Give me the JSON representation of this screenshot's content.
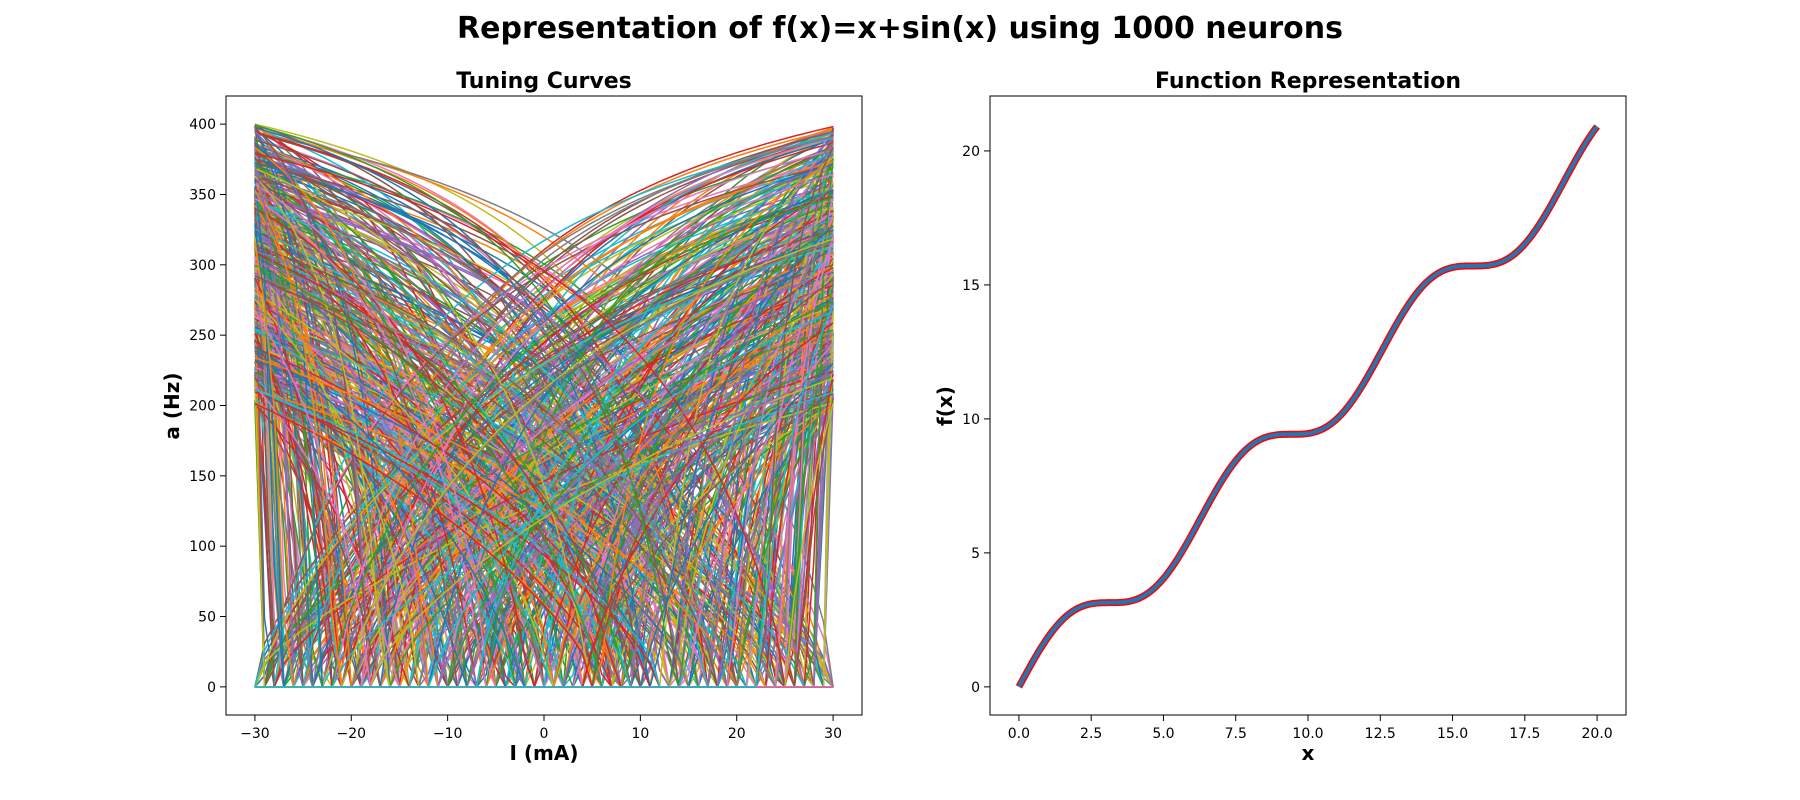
{
  "figure": {
    "title": "Representation of f(x)=x+sin(x) using 1000 neurons"
  },
  "chart_data": [
    {
      "type": "line",
      "title": "Tuning Curves",
      "xlabel": "I (mA)",
      "ylabel": "a (Hz)",
      "xlim": [
        -33,
        33
      ],
      "ylim": [
        -20,
        420
      ],
      "xticks": [
        -30,
        -20,
        -10,
        0,
        10,
        20,
        30
      ],
      "xtick_labels": [
        "−30",
        "−20",
        "−10",
        "0",
        "10",
        "20",
        "30"
      ],
      "yticks": [
        0,
        50,
        100,
        150,
        200,
        250,
        300,
        350,
        400
      ],
      "ytick_labels": [
        "0",
        "50",
        "100",
        "150",
        "200",
        "250",
        "300",
        "350",
        "400"
      ],
      "grid": false,
      "legend": "none",
      "series_count": 1000,
      "x_range": [
        -30,
        30
      ],
      "max_rate_range": [
        200,
        400
      ],
      "intercept_range": [
        -30,
        30
      ],
      "colors": [
        "#1f77b4",
        "#ff7f0e",
        "#2ca02c",
        "#d62728",
        "#9467bd",
        "#8c564b",
        "#e377c2",
        "#7f7f7f",
        "#bcbd22",
        "#17becf"
      ]
    },
    {
      "type": "line",
      "title": "Function Representation",
      "xlabel": "x",
      "ylabel": "f(x)",
      "xlim": [
        -1,
        21
      ],
      "ylim": [
        -1.05,
        22.05
      ],
      "xticks": [
        0,
        2.5,
        5,
        7.5,
        10,
        12.5,
        15,
        17.5,
        20
      ],
      "xtick_labels": [
        "0.0",
        "2.5",
        "5.0",
        "7.5",
        "10.0",
        "12.5",
        "15.0",
        "17.5",
        "20.0"
      ],
      "yticks": [
        0,
        5,
        10,
        15,
        20
      ],
      "ytick_labels": [
        "0",
        "5",
        "10",
        "15",
        "20"
      ],
      "grid": false,
      "legend": "none",
      "x_range": [
        0,
        20
      ],
      "series": [
        {
          "function": "x+sin(x)",
          "color": "#ff0000"
        },
        {
          "function": "x+sin(x)",
          "color": "#1f77b4"
        }
      ]
    }
  ]
}
